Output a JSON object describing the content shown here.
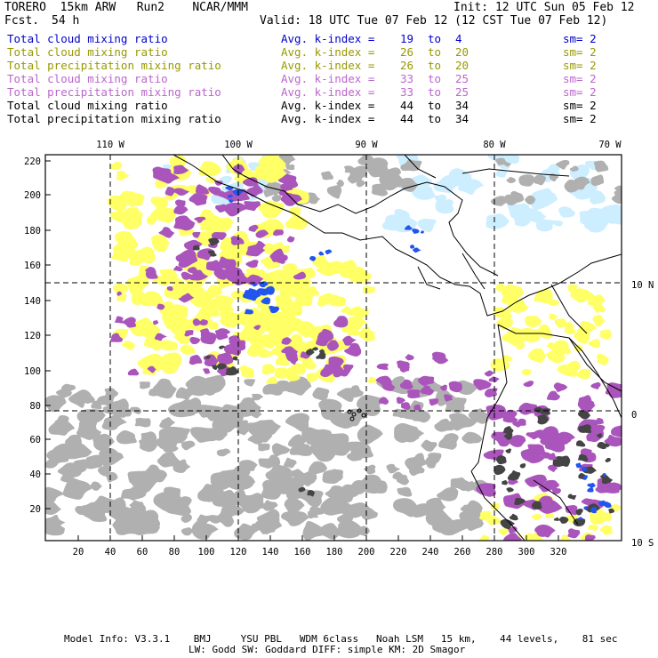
{
  "header": {
    "model": "TORERO  15km ARW   Run2    NCAR/MMM",
    "init": "Init: 12 UTC Sun 05 Feb 12",
    "fcst_label": "Fcst.",
    "fcst_hours": "54 h",
    "valid": "Valid: 18 UTC Tue 07 Feb 12 (12 CST Tue 07 Feb 12)"
  },
  "legend": [
    {
      "field": "Total cloud mixing ratio",
      "kindex": "Avg. k-index =",
      "from": "19",
      "to_word": "to",
      "to": "4",
      "sm": "sm= 2",
      "color": "#0000cc"
    },
    {
      "field": "Total cloud mixing ratio",
      "kindex": "Avg. k-index =",
      "from": "26",
      "to_word": "to",
      "to": "20",
      "sm": "sm= 2",
      "color": "#999900"
    },
    {
      "field": "Total precipitation mixing ratio",
      "kindex": "Avg. k-index =",
      "from": "26",
      "to_word": "to",
      "to": "20",
      "sm": "sm= 2",
      "color": "#999900"
    },
    {
      "field": "Total cloud mixing ratio",
      "kindex": "Avg. k-index =",
      "from": "33",
      "to_word": "to",
      "to": "25",
      "sm": "sm= 2",
      "color": "#bb66cc"
    },
    {
      "field": "Total precipitation mixing ratio",
      "kindex": "Avg. k-index =",
      "from": "33",
      "to_word": "to",
      "to": "25",
      "sm": "sm= 2",
      "color": "#bb66cc"
    },
    {
      "field": "Total cloud mixing ratio",
      "kindex": "Avg. k-index =",
      "from": "44",
      "to_word": "to",
      "to": "34",
      "sm": "sm= 2",
      "color": "#000000"
    },
    {
      "field": "Total precipitation mixing ratio",
      "kindex": "Avg. k-index =",
      "from": "44",
      "to_word": "to",
      "to": "34",
      "sm": "sm= 2",
      "color": "#000000"
    }
  ],
  "map": {
    "lon_labels": [
      "110 W",
      "100 W",
      "90 W",
      "80 W",
      "70 W"
    ],
    "lat_labels": [
      "10 N",
      "0",
      "10 S"
    ],
    "y_ticks": [
      "220",
      "200",
      "180",
      "160",
      "140",
      "120",
      "100",
      "80",
      "60",
      "40",
      "20"
    ],
    "x_ticks": [
      "20",
      "40",
      "60",
      "80",
      "100",
      "120",
      "140",
      "160",
      "180",
      "200",
      "220",
      "240",
      "260",
      "280",
      "300",
      "320"
    ],
    "colors": {
      "frame": "#000000",
      "yellow_cloud": "#ffff66",
      "purple_precip": "#aa55bb",
      "gray_cloud": "#b0b0b0",
      "blue_cloud": "#2255ee",
      "light_blue": "#cceeff",
      "dark_core": "#444444"
    }
  },
  "footer": {
    "line1": "Model Info: V3.3.1    BMJ     YSU PBL   WDM 6class   Noah LSM   15 km,    44 levels,    81 sec",
    "line2": "LW: Godd SW: Goddard DIFF: simple KM: 2D Smagor"
  }
}
